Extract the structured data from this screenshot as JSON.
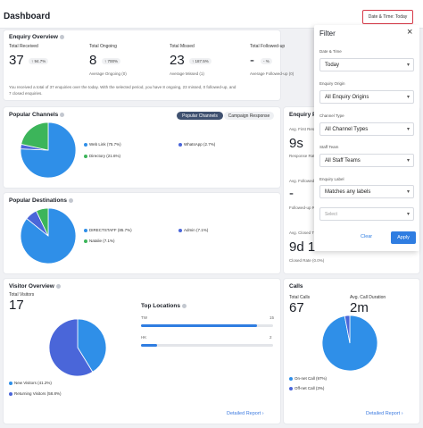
{
  "header": {
    "title": "Dashboard",
    "date_button": "Date & Time: Today"
  },
  "enquiry_overview": {
    "title": "Enquiry Overview",
    "received": {
      "label": "Total Received",
      "value": "37",
      "badge": "↑ 94.7%"
    },
    "ongoing": {
      "label": "Total Ongoing",
      "value": "8",
      "badge": "↑ 700%",
      "sub": "Average Ongoing (0)"
    },
    "missed": {
      "label": "Total Missed",
      "value": "23",
      "badge": "↑ 187.5%",
      "sub": "Average Missed (1)"
    },
    "followed": {
      "label": "Total Followed-up",
      "value": "-",
      "badge": "- %",
      "sub": "Average Followed-up (0)"
    },
    "summary_line1": "You received a total of 37 enquiries over the today. With the selected period, you have 8 ongoing, 23 missed, 0 followed-up, and",
    "summary_line2": "7 closed enquiries."
  },
  "popular_channels": {
    "title": "Popular Channels",
    "toggle_active": "Popular Channels",
    "toggle_inactive": "Campaign Response",
    "legend": [
      {
        "label": "Web Link (75.7%)",
        "color": "#2f8fe8"
      },
      {
        "label": "WhatsApp (2.7%)",
        "color": "#4a66d9"
      },
      {
        "label": "Directory (21.6%)",
        "color": "#3cb55a"
      }
    ],
    "slices": [
      75.7,
      2.7,
      21.6
    ]
  },
  "popular_destinations": {
    "title": "Popular Destinations",
    "legend": [
      {
        "label": "DIRECTSTAFF (85.7%)",
        "color": "#2f8fe8"
      },
      {
        "label": "Admin (7.1%)",
        "color": "#4a66d9"
      },
      {
        "label": "Natalie (7.1%)",
        "color": "#3cb55a"
      }
    ],
    "slices": [
      85.7,
      7.1,
      7.1
    ]
  },
  "enquiry_performance": {
    "title": "Enquiry Pe",
    "first_response_label": "Avg. First Resp",
    "first_response_value": "9s",
    "response_rate": "Response Rate",
    "followed_label": "Avg. Followed",
    "followed_value": "-",
    "followed_rate": "Followed-up R",
    "closing_label": "Avg. Closed Ti",
    "closing_value": "9d 17h 23m 14s",
    "closed_rate": "Closed Rate (0.0%)"
  },
  "visitor_overview": {
    "title": "Visitor Overview",
    "total_label": "Total Visitors",
    "total_value": "17",
    "legend": [
      {
        "label": "New Visitors (41.2%)",
        "color": "#2f8fe8"
      },
      {
        "label": "Returning Visitors (58.8%)",
        "color": "#4a66d9"
      }
    ],
    "slices": [
      41.2,
      58.8
    ],
    "top_locations_title": "Top Locations",
    "locations": [
      {
        "name": "TW",
        "count": "15",
        "fraction": 0.88
      },
      {
        "name": "HK",
        "count": "2",
        "fraction": 0.12
      }
    ],
    "detailed_report": "Detailed Report ›"
  },
  "calls": {
    "title": "Calls",
    "total_label": "Total Calls",
    "total_value": "67",
    "duration_label": "Avg. Call Duration",
    "duration_value": "2m",
    "legend": [
      {
        "label": "On-net Call (97%)",
        "color": "#2f8fe8"
      },
      {
        "label": "Off-net Call (3%)",
        "color": "#4a66d9"
      }
    ],
    "slices": [
      97,
      3
    ],
    "detailed_report": "Detailed Report ›"
  },
  "filter": {
    "title": "Filter",
    "close": "×",
    "date_label": "Date & Time",
    "date_value": "Today",
    "origin_label": "Enquiry Origin",
    "origin_value": "All Enquiry Origins",
    "channel_label": "Channel Type",
    "channel_value": "All Channel Types",
    "staff_label": "Staff Team",
    "staff_value": "All Staff Teams",
    "enquiry_label_label": "Enquiry Label",
    "enquiry_label_value": "Matches any labels",
    "select_placeholder": "Select",
    "clear": "Clear",
    "apply": "Apply"
  }
}
